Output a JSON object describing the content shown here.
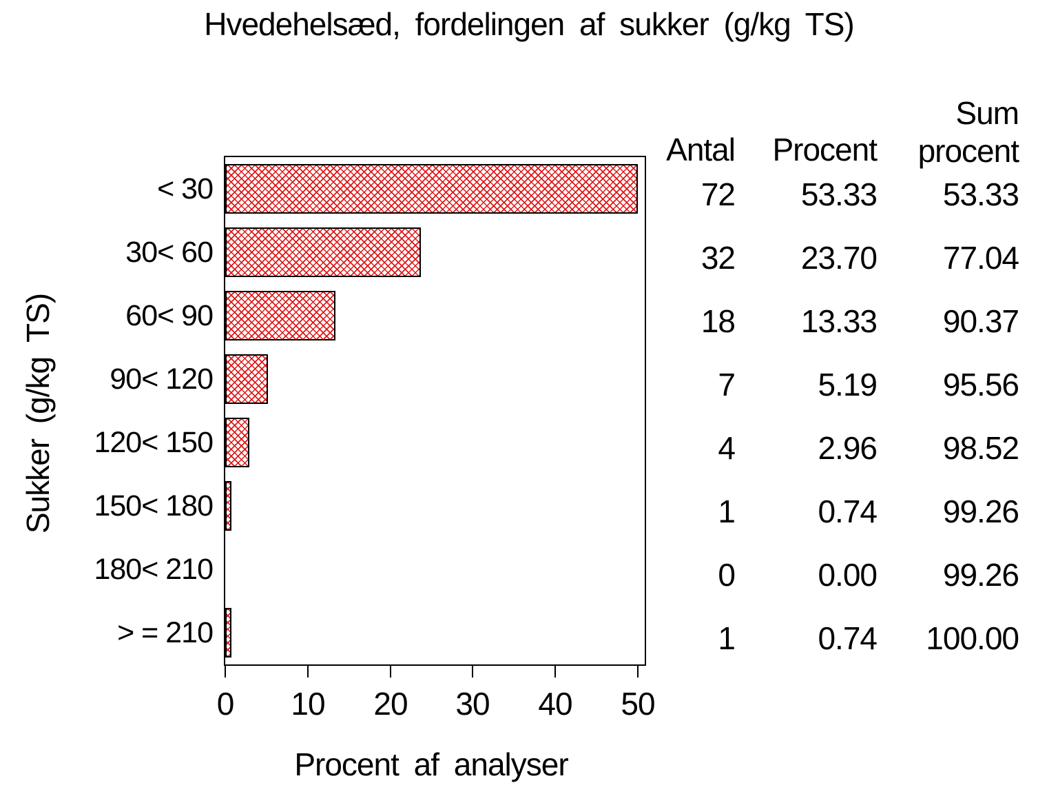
{
  "title": "Hvedehelsæd, fordelingen af sukker (g/kg TS)",
  "chart_data": {
    "type": "bar",
    "orientation": "horizontal",
    "title": "Hvedehelsæd, fordelingen af sukker (g/kg TS)",
    "xlabel": "Procent af analyser",
    "ylabel": "Sukker (g/kg TS)",
    "xlim": [
      0,
      50
    ],
    "xticks": [
      "0",
      "10",
      "20",
      "30",
      "40",
      "50"
    ],
    "grid": "off",
    "bar_fill": "red crosshatch pattern on white",
    "categories": [
      "< 30",
      "30< 60",
      "60< 90",
      "90< 120",
      "120< 150",
      "150< 180",
      "180< 210",
      "> = 210"
    ],
    "series": [
      {
        "name": "Antal",
        "values": [
          72,
          32,
          18,
          7,
          4,
          1,
          0,
          1
        ]
      },
      {
        "name": "Procent",
        "values": [
          53.33,
          23.7,
          13.33,
          5.19,
          2.96,
          0.74,
          0.0,
          0.74
        ]
      },
      {
        "name": "Sum procent",
        "values": [
          53.33,
          77.04,
          90.37,
          95.56,
          98.52,
          99.26,
          99.26,
          100.0
        ]
      }
    ],
    "note": "first bar (53.33) is drawn clipped at axis max 50"
  },
  "table": {
    "headers": {
      "antal": "Antal",
      "procent": "Procent",
      "sum_line1": "Sum",
      "sum_line2": "procent"
    },
    "rows": [
      {
        "antal": "72",
        "procent": "53.33",
        "sum": "53.33"
      },
      {
        "antal": "32",
        "procent": "23.70",
        "sum": "77.04"
      },
      {
        "antal": "18",
        "procent": "13.33",
        "sum": "90.37"
      },
      {
        "antal": "7",
        "procent": "5.19",
        "sum": "95.56"
      },
      {
        "antal": "4",
        "procent": "2.96",
        "sum": "98.52"
      },
      {
        "antal": "1",
        "procent": "0.74",
        "sum": "99.26"
      },
      {
        "antal": "0",
        "procent": "0.00",
        "sum": "99.26"
      },
      {
        "antal": "1",
        "procent": "0.74",
        "sum": "100.00"
      }
    ]
  },
  "colors": {
    "bar_pattern": "#e01414",
    "bar_border": "#000000",
    "frame": "#000000",
    "text": "#000000",
    "background": "#ffffff"
  }
}
